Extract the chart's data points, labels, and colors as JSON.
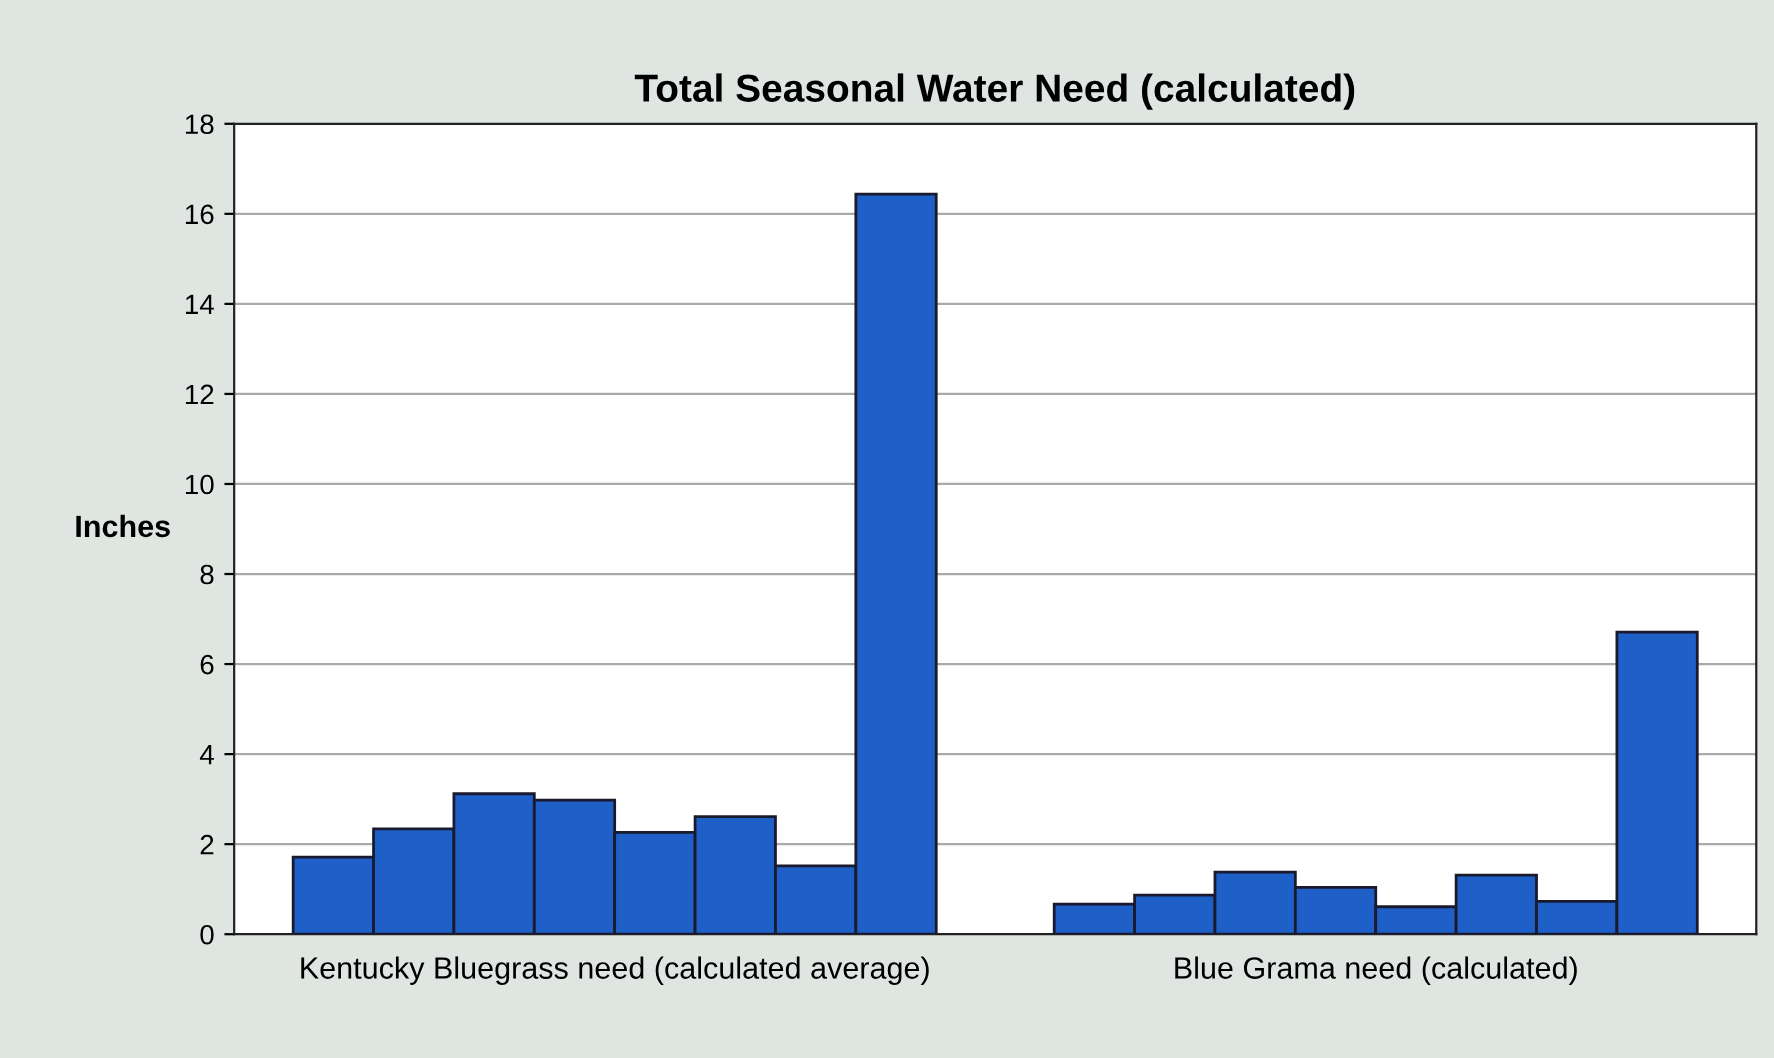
{
  "chart_data": {
    "type": "bar",
    "title": "Total Seasonal Water Need (calculated)",
    "ylabel": "Inches",
    "categories": [
      "Kentucky Bluegrass need (calculated average)",
      "Blue Grama need (calculated)"
    ],
    "series": [
      {
        "color": "#1f5fc8",
        "values": [
          1.71,
          0.67
        ]
      },
      {
        "color": "#1f5fc8",
        "values": [
          2.34,
          0.87
        ]
      },
      {
        "color": "#1f5fc8",
        "values": [
          3.12,
          1.38
        ]
      },
      {
        "color": "#1f5fc8",
        "values": [
          2.98,
          1.04
        ]
      },
      {
        "color": "#1f5fc8",
        "values": [
          2.26,
          0.61
        ]
      },
      {
        "color": "#1f5fc8",
        "values": [
          2.61,
          1.31
        ]
      },
      {
        "color": "#1f5fc8",
        "values": [
          1.52,
          0.73
        ]
      },
      {
        "color": "#1f5fc8",
        "values": [
          16.44,
          6.71
        ]
      }
    ],
    "ylim": [
      0,
      18
    ],
    "yticks": [
      0,
      2,
      4,
      6,
      8,
      10,
      12,
      14,
      16,
      18
    ],
    "grid": "y"
  }
}
